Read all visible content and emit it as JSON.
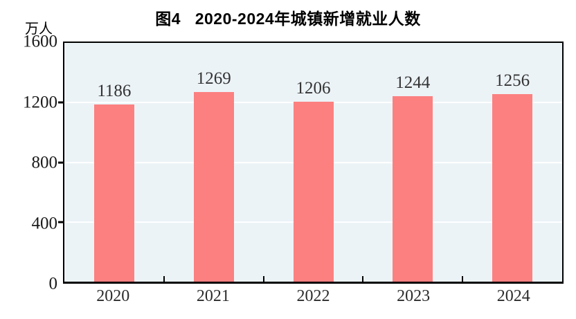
{
  "title": "图4   2020-2024年城镇新增就业人数",
  "unit_label": "万人",
  "chart_data": {
    "type": "bar",
    "title": "图4 2020-2024年城镇新增就业人数",
    "categories": [
      "2020",
      "2021",
      "2022",
      "2023",
      "2024"
    ],
    "values": [
      1186,
      1269,
      1206,
      1244,
      1256
    ],
    "xlabel": "",
    "ylabel": "万人",
    "ylim": [
      0,
      1600
    ],
    "yticks": [
      0,
      400,
      800,
      1200,
      1600
    ],
    "grid": true,
    "legend": "none",
    "colors": {
      "bar": "#FC8080",
      "plot_background": "#ECF3F7",
      "gridline": "#FFFFFF",
      "axis": "#000000",
      "value_label": "#333333"
    }
  }
}
